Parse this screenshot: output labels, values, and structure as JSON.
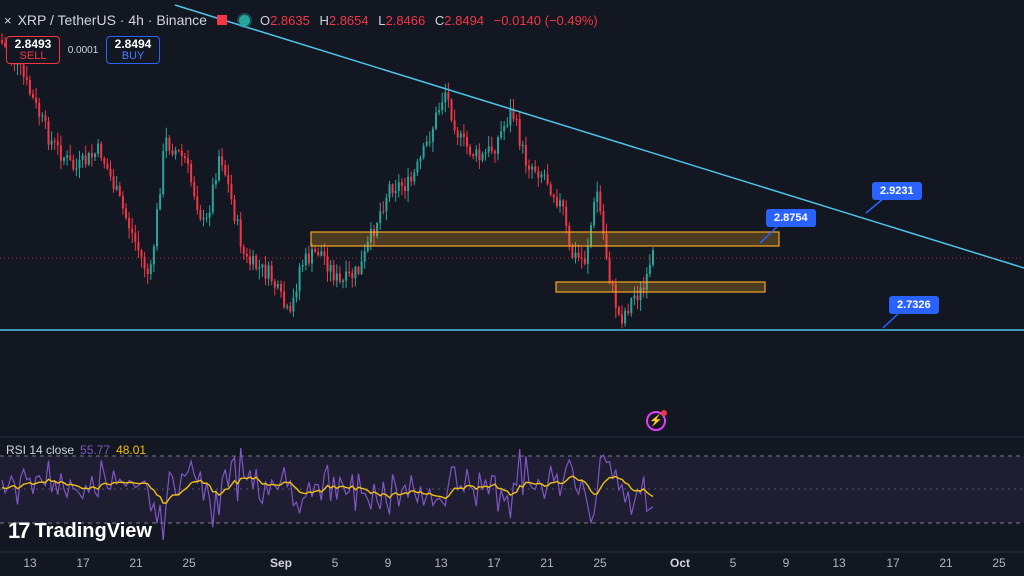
{
  "header": {
    "symbol": "XRP / TetherUS · 4h · Binance",
    "close_icon": "×",
    "ohlc": {
      "o_label": "O",
      "o": "2.8635",
      "h_label": "H",
      "h": "2.8654",
      "l_label": "L",
      "l": "2.8466",
      "c_label": "C",
      "c": "2.8494",
      "change": "−0.0140 (−0.49%)"
    }
  },
  "trade": {
    "sell_price": "2.8493",
    "sell_label": "SELL",
    "spread": "0.0001",
    "buy_price": "2.8494",
    "buy_label": "BUY"
  },
  "labels": {
    "trend_top": "2.9231",
    "box_top": "2.8754",
    "support": "2.7326"
  },
  "rsi": {
    "name": "RSI 14 close",
    "value": "55.77",
    "ma": "48.01"
  },
  "brand": {
    "mark": "17",
    "name": "TradingView"
  },
  "xaxis": {
    "ticks": [
      "13",
      "17",
      "21",
      "25",
      "Sep",
      "5",
      "9",
      "13",
      "17",
      "21",
      "25",
      "Oct",
      "5",
      "9",
      "13",
      "17",
      "21",
      "25"
    ]
  },
  "colors": {
    "up": "#26a69a",
    "down": "#f23645",
    "trendline": "#4dc3e8",
    "zone": "#f5a623",
    "rsi": "#7e57c2",
    "rsi_ma": "#f0c010"
  },
  "icons": {
    "alert": "lightning-alert-icon"
  }
}
